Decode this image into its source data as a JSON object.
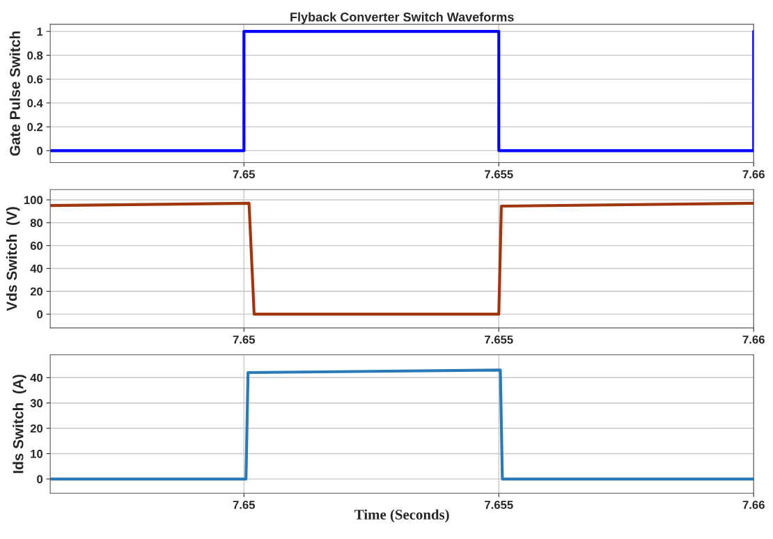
{
  "chart_data": [
    {
      "type": "line",
      "title": "Flyback Converter Switch Waveforms",
      "ylabel": "Gate Pulse Switch",
      "x": [
        7.6462,
        7.65,
        7.65,
        7.655,
        7.655,
        7.66,
        7.66
      ],
      "series": [
        {
          "color": "#0000ff",
          "values": [
            0,
            0,
            1,
            1,
            0,
            0,
            1
          ]
        }
      ],
      "xlim": [
        7.6462,
        7.66
      ],
      "xticks": [
        7.65,
        7.655,
        7.66
      ],
      "ylim": [
        -0.1,
        1.06
      ],
      "yticks": [
        0,
        0.2,
        0.4,
        0.6,
        0.8,
        1
      ],
      "grid": true
    },
    {
      "type": "line",
      "ylabel": "Vds Switch  (V)",
      "x": [
        7.6462,
        7.6501,
        7.6502,
        7.655,
        7.65505,
        7.66
      ],
      "series": [
        {
          "color": "#a0360e",
          "values": [
            95,
            97,
            0,
            0,
            94.5,
            97
          ]
        }
      ],
      "xlim": [
        7.6462,
        7.66
      ],
      "xticks": [
        7.65,
        7.655,
        7.66
      ],
      "ylim": [
        -12,
        109
      ],
      "yticks": [
        0,
        20,
        40,
        60,
        80,
        100
      ],
      "grid": true
    },
    {
      "type": "line",
      "ylabel": "Ids Switch  (A)",
      "xlabel": "Time (Seconds)",
      "x": [
        7.6462,
        7.65004,
        7.65008,
        7.65503,
        7.65507,
        7.66
      ],
      "series": [
        {
          "color": "#2a7ab8",
          "values": [
            0,
            0,
            42,
            43,
            0,
            0
          ]
        }
      ],
      "xlim": [
        7.6462,
        7.66
      ],
      "xticks": [
        7.65,
        7.655,
        7.66
      ],
      "ylim": [
        -5.6,
        49
      ],
      "yticks": [
        0,
        10,
        20,
        30,
        40
      ],
      "grid": true
    }
  ]
}
